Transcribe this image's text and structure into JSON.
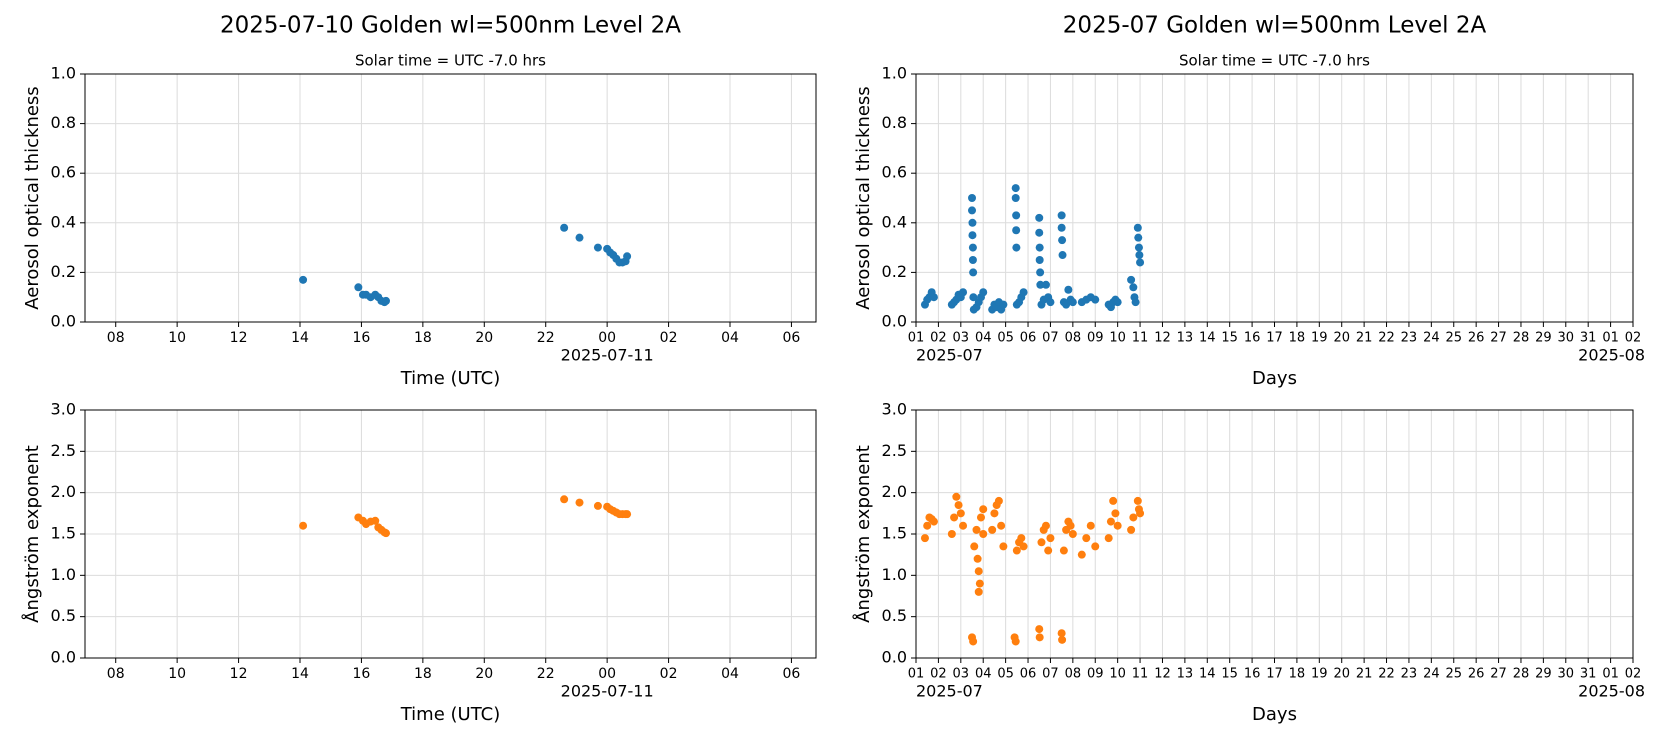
{
  "chart_data": [
    {
      "type": "scatter",
      "title": "2025-07-10  Golden  wl=500nm  Level 2A",
      "subtitle": "Solar time = UTC -7.0 hrs",
      "xlabel": "Time (UTC)",
      "ylabel": "Aerosol optical thickness",
      "grid": true,
      "color": "#1f77b4",
      "xlim": [
        7,
        30.8
      ],
      "ylim": [
        0,
        1
      ],
      "xticks": [
        {
          "value": 8,
          "label": "08"
        },
        {
          "value": 10,
          "label": "10"
        },
        12,
        14,
        16,
        18,
        20,
        22,
        {
          "value": 24,
          "label": "00"
        },
        {
          "value": 26,
          "label": "02"
        },
        {
          "value": 28,
          "label": "04"
        },
        {
          "value": 30,
          "label": "06"
        }
      ],
      "xtick_sublabels": [
        {
          "value": 24,
          "label": "2025-07-11"
        }
      ],
      "yticks": [
        {
          "value": 0,
          "label": "0.0"
        },
        0.2,
        0.4,
        0.6,
        0.8,
        {
          "value": 1,
          "label": "1.0"
        }
      ],
      "x": [
        14.1,
        15.9,
        16.05,
        16.15,
        16.3,
        16.45,
        16.55,
        16.65,
        16.75,
        16.8,
        22.6,
        23.1,
        23.7,
        24.0,
        24.1,
        24.2,
        24.3,
        24.4,
        24.5,
        24.6,
        24.65
      ],
      "values": [
        0.17,
        0.14,
        0.11,
        0.11,
        0.1,
        0.11,
        0.1,
        0.085,
        0.08,
        0.085,
        0.38,
        0.34,
        0.3,
        0.295,
        0.28,
        0.27,
        0.255,
        0.24,
        0.24,
        0.245,
        0.265
      ]
    },
    {
      "type": "scatter",
      "title": "2025-07  Golden  wl=500nm  Level 2A",
      "subtitle": "Solar time = UTC -7.0 hrs",
      "xlabel": "Days",
      "ylabel": "Aerosol optical thickness",
      "grid": true,
      "color": "#1f77b4",
      "xlim": [
        1,
        33
      ],
      "ylim": [
        0,
        1
      ],
      "xticks": [
        {
          "value": 1,
          "label": "01"
        },
        {
          "value": 2,
          "label": "02"
        },
        {
          "value": 3,
          "label": "03"
        },
        {
          "value": 4,
          "label": "04"
        },
        {
          "value": 5,
          "label": "05"
        },
        {
          "value": 6,
          "label": "06"
        },
        {
          "value": 7,
          "label": "07"
        },
        {
          "value": 8,
          "label": "08"
        },
        {
          "value": 9,
          "label": "09"
        },
        10,
        11,
        12,
        13,
        14,
        15,
        16,
        17,
        18,
        19,
        20,
        21,
        22,
        23,
        24,
        25,
        26,
        27,
        28,
        29,
        30,
        31,
        {
          "value": 32,
          "label": "01"
        },
        {
          "value": 33,
          "label": "02"
        }
      ],
      "xtick_sublabels": [
        {
          "value": 1,
          "label": "2025-07"
        },
        {
          "value": 32,
          "label": "2025-08"
        }
      ],
      "yticks": [
        {
          "value": 0,
          "label": "0.0"
        },
        0.2,
        0.4,
        0.6,
        0.8,
        {
          "value": 1,
          "label": "1.0"
        }
      ],
      "x": [
        1.4,
        1.5,
        1.6,
        1.7,
        1.8,
        2.6,
        2.7,
        2.8,
        2.9,
        3.0,
        3.1,
        3.5,
        3.5,
        3.52,
        3.52,
        3.54,
        3.54,
        3.55,
        3.56,
        3.58,
        3.7,
        3.8,
        3.9,
        4.0,
        4.4,
        4.5,
        4.6,
        4.7,
        4.8,
        4.9,
        5.45,
        5.45,
        5.47,
        5.47,
        5.48,
        5.5,
        5.6,
        5.7,
        5.8,
        6.5,
        6.5,
        6.52,
        6.52,
        6.54,
        6.55,
        6.6,
        6.7,
        6.8,
        6.9,
        7.0,
        7.5,
        7.5,
        7.52,
        7.54,
        7.6,
        7.7,
        7.8,
        7.9,
        8.0,
        8.4,
        8.6,
        8.8,
        9.0,
        9.6,
        9.7,
        9.8,
        9.9,
        10.0,
        10.6,
        10.7,
        10.75,
        10.8,
        10.9,
        10.92,
        10.95,
        10.97,
        11.0
      ],
      "values": [
        0.07,
        0.09,
        0.1,
        0.12,
        0.1,
        0.07,
        0.08,
        0.09,
        0.11,
        0.1,
        0.12,
        0.5,
        0.45,
        0.4,
        0.35,
        0.3,
        0.25,
        0.2,
        0.1,
        0.05,
        0.06,
        0.08,
        0.1,
        0.12,
        0.05,
        0.07,
        0.06,
        0.08,
        0.05,
        0.07,
        0.54,
        0.5,
        0.43,
        0.37,
        0.3,
        0.07,
        0.08,
        0.1,
        0.12,
        0.42,
        0.36,
        0.3,
        0.25,
        0.2,
        0.15,
        0.07,
        0.09,
        0.15,
        0.1,
        0.08,
        0.43,
        0.38,
        0.33,
        0.27,
        0.08,
        0.07,
        0.13,
        0.09,
        0.08,
        0.08,
        0.09,
        0.1,
        0.09,
        0.07,
        0.06,
        0.08,
        0.09,
        0.08,
        0.17,
        0.14,
        0.1,
        0.08,
        0.38,
        0.34,
        0.3,
        0.27,
        0.24
      ]
    },
    {
      "type": "scatter",
      "xlabel": "Time (UTC)",
      "ylabel": "Ångström exponent",
      "grid": true,
      "color": "#ff7f0e",
      "xlim": [
        7,
        30.8
      ],
      "ylim": [
        0,
        3
      ],
      "xticks": [
        {
          "value": 8,
          "label": "08"
        },
        {
          "value": 10,
          "label": "10"
        },
        12,
        14,
        16,
        18,
        20,
        22,
        {
          "value": 24,
          "label": "00"
        },
        {
          "value": 26,
          "label": "02"
        },
        {
          "value": 28,
          "label": "04"
        },
        {
          "value": 30,
          "label": "06"
        }
      ],
      "xtick_sublabels": [
        {
          "value": 24,
          "label": "2025-07-11"
        }
      ],
      "yticks": [
        {
          "value": 0,
          "label": "0.0"
        },
        0.5,
        {
          "value": 1,
          "label": "1.0"
        },
        1.5,
        {
          "value": 2,
          "label": "2.0"
        },
        2.5,
        {
          "value": 3,
          "label": "3.0"
        }
      ],
      "x": [
        14.1,
        15.9,
        16.05,
        16.15,
        16.3,
        16.45,
        16.55,
        16.65,
        16.75,
        16.8,
        22.6,
        23.1,
        23.7,
        24.0,
        24.1,
        24.2,
        24.3,
        24.4,
        24.5,
        24.6,
        24.65
      ],
      "values": [
        1.6,
        1.7,
        1.66,
        1.62,
        1.65,
        1.66,
        1.58,
        1.55,
        1.52,
        1.51,
        1.92,
        1.88,
        1.84,
        1.83,
        1.8,
        1.78,
        1.76,
        1.74,
        1.74,
        1.74,
        1.74
      ]
    },
    {
      "type": "scatter",
      "xlabel": "Days",
      "ylabel": "Ångström exponent",
      "grid": true,
      "color": "#ff7f0e",
      "xlim": [
        1,
        33
      ],
      "ylim": [
        0,
        3
      ],
      "xticks": [
        {
          "value": 1,
          "label": "01"
        },
        {
          "value": 2,
          "label": "02"
        },
        {
          "value": 3,
          "label": "03"
        },
        {
          "value": 4,
          "label": "04"
        },
        {
          "value": 5,
          "label": "05"
        },
        {
          "value": 6,
          "label": "06"
        },
        {
          "value": 7,
          "label": "07"
        },
        {
          "value": 8,
          "label": "08"
        },
        {
          "value": 9,
          "label": "09"
        },
        10,
        11,
        12,
        13,
        14,
        15,
        16,
        17,
        18,
        19,
        20,
        21,
        22,
        23,
        24,
        25,
        26,
        27,
        28,
        29,
        30,
        31,
        {
          "value": 32,
          "label": "01"
        },
        {
          "value": 33,
          "label": "02"
        }
      ],
      "xtick_sublabels": [
        {
          "value": 1,
          "label": "2025-07"
        },
        {
          "value": 32,
          "label": "2025-08"
        }
      ],
      "yticks": [
        {
          "value": 0,
          "label": "0.0"
        },
        0.5,
        {
          "value": 1,
          "label": "1.0"
        },
        1.5,
        {
          "value": 2,
          "label": "2.0"
        },
        2.5,
        {
          "value": 3,
          "label": "3.0"
        }
      ],
      "x": [
        1.4,
        1.5,
        1.6,
        1.7,
        1.8,
        2.6,
        2.7,
        2.8,
        2.9,
        3.0,
        3.1,
        3.5,
        3.55,
        3.6,
        3.7,
        3.75,
        3.8,
        3.8,
        3.85,
        3.9,
        4.0,
        4.0,
        4.4,
        4.5,
        4.6,
        4.7,
        4.8,
        4.9,
        5.4,
        5.45,
        5.5,
        5.6,
        5.7,
        5.8,
        6.5,
        6.52,
        6.6,
        6.7,
        6.8,
        6.9,
        7.0,
        7.5,
        7.52,
        7.6,
        7.7,
        7.8,
        7.9,
        8.0,
        8.4,
        8.6,
        8.8,
        9.0,
        9.6,
        9.7,
        9.8,
        9.9,
        10.0,
        10.6,
        10.7,
        10.9,
        10.95,
        11.0
      ],
      "values": [
        1.45,
        1.6,
        1.7,
        1.68,
        1.65,
        1.5,
        1.7,
        1.95,
        1.85,
        1.75,
        1.6,
        0.25,
        0.2,
        1.35,
        1.55,
        1.2,
        1.05,
        0.8,
        0.9,
        1.7,
        1.8,
        1.5,
        1.55,
        1.75,
        1.85,
        1.9,
        1.6,
        1.35,
        0.25,
        0.2,
        1.3,
        1.4,
        1.45,
        1.35,
        0.35,
        0.25,
        1.4,
        1.55,
        1.6,
        1.3,
        1.45,
        0.3,
        0.22,
        1.3,
        1.55,
        1.65,
        1.6,
        1.5,
        1.25,
        1.45,
        1.6,
        1.35,
        1.45,
        1.65,
        1.9,
        1.75,
        1.6,
        1.55,
        1.7,
        1.9,
        1.8,
        1.75
      ]
    }
  ]
}
